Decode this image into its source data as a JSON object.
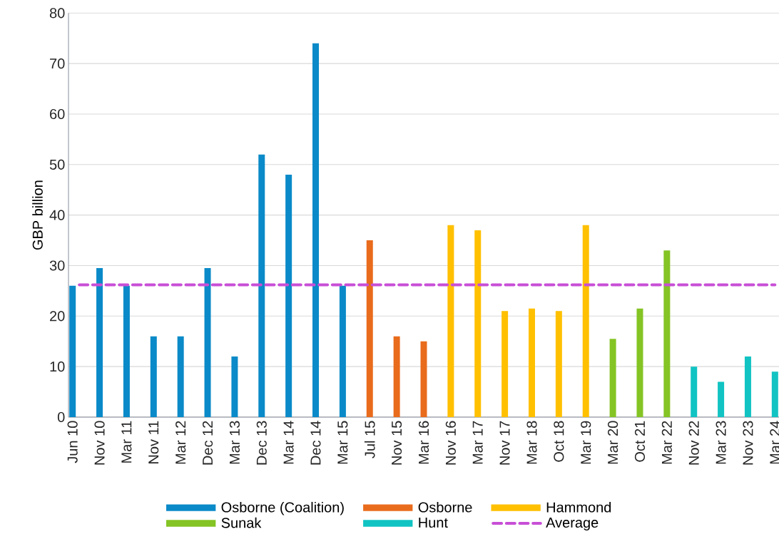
{
  "chart_data": {
    "type": "bar",
    "ylabel": "GBP billion",
    "categories": [
      "Jun 10",
      "Nov 10",
      "Mar 11",
      "Nov 11",
      "Mar 12",
      "Dec 12",
      "Mar 13",
      "Dec 13",
      "Mar 14",
      "Dec 14",
      "Mar 15",
      "Jul 15",
      "Nov 15",
      "Mar 16",
      "Nov 16",
      "Mar 17",
      "Nov 17",
      "Mar 18",
      "Oct 18",
      "Mar 19",
      "Mar 20",
      "Oct 21",
      "Mar 22",
      "Nov 22",
      "Mar 23",
      "Nov 23",
      "Mar 24"
    ],
    "series": [
      {
        "name": "Osborne (Coalition)",
        "color": "#0a8ac8",
        "values": [
          26,
          29.5,
          26,
          16,
          16,
          29.5,
          12,
          52,
          48,
          74,
          26,
          null,
          null,
          null,
          null,
          null,
          null,
          null,
          null,
          null,
          null,
          null,
          null,
          null,
          null,
          null,
          null
        ]
      },
      {
        "name": "Osborne",
        "color": "#e96b1c",
        "values": [
          null,
          null,
          null,
          null,
          null,
          null,
          null,
          null,
          null,
          null,
          null,
          35,
          16,
          15,
          null,
          null,
          null,
          null,
          null,
          null,
          null,
          null,
          null,
          null,
          null,
          null,
          null
        ]
      },
      {
        "name": "Hammond",
        "color": "#ffc000",
        "values": [
          null,
          null,
          null,
          null,
          null,
          null,
          null,
          null,
          null,
          null,
          null,
          null,
          null,
          null,
          38,
          37,
          21,
          21.5,
          21,
          38,
          null,
          null,
          null,
          null,
          null,
          null,
          null
        ]
      },
      {
        "name": "Sunak",
        "color": "#84c424",
        "values": [
          null,
          null,
          null,
          null,
          null,
          null,
          null,
          null,
          null,
          null,
          null,
          null,
          null,
          null,
          null,
          null,
          null,
          null,
          null,
          null,
          15.5,
          21.5,
          33,
          null,
          null,
          null,
          null
        ]
      },
      {
        "name": "Hunt",
        "color": "#12c3c3",
        "values": [
          null,
          null,
          null,
          null,
          null,
          null,
          null,
          null,
          null,
          null,
          null,
          null,
          null,
          null,
          null,
          null,
          null,
          null,
          null,
          null,
          null,
          null,
          null,
          10,
          7,
          12,
          9
        ]
      }
    ],
    "ylim": [
      0,
      80
    ],
    "yticks": [
      0,
      10,
      20,
      30,
      40,
      50,
      60,
      70,
      80
    ],
    "grid": "y",
    "legend": "bottom",
    "ref_lines": [
      {
        "axis": "y",
        "value": 26.2,
        "label": "Average",
        "color": "#c84fd6",
        "line_style": "dashed"
      }
    ]
  }
}
